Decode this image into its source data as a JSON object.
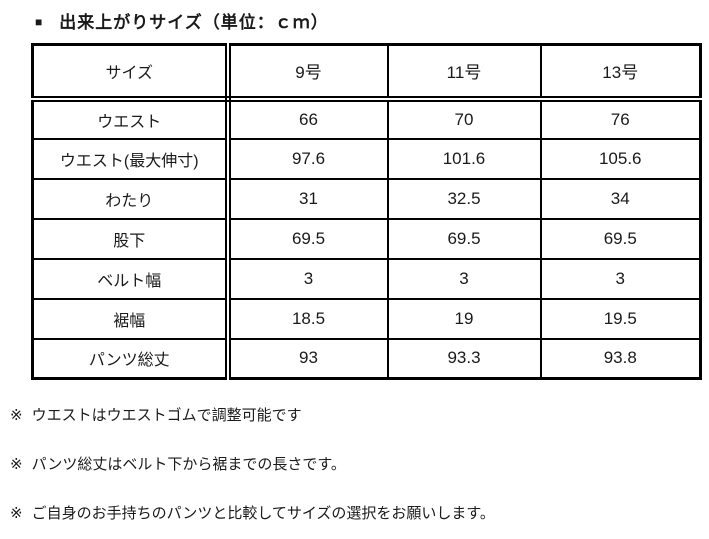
{
  "title": {
    "bullet": "■",
    "text": "出来上がりサイズ（単位：ｃｍ）"
  },
  "table": {
    "header": {
      "label": "サイズ",
      "columns": [
        "9号",
        "11号",
        "13号"
      ]
    },
    "rows": [
      {
        "label": "ウエスト",
        "values": [
          "66",
          "70",
          "76"
        ]
      },
      {
        "label": "ウエスト(最大伸寸)",
        "values": [
          "97.6",
          "101.6",
          "105.6"
        ]
      },
      {
        "label": "わたり",
        "values": [
          "31",
          "32.5",
          "34"
        ]
      },
      {
        "label": "股下",
        "values": [
          "69.5",
          "69.5",
          "69.5"
        ]
      },
      {
        "label": "ベルト幅",
        "values": [
          "3",
          "3",
          "3"
        ]
      },
      {
        "label": "裾幅",
        "values": [
          "18.5",
          "19",
          "19.5"
        ]
      },
      {
        "label": "パンツ総丈",
        "values": [
          "93",
          "93.3",
          "93.8"
        ]
      }
    ]
  },
  "notes": {
    "marker": "※",
    "items": [
      "ウエストはウエストゴムで調整可能です",
      "パンツ総丈はベルト下から裾までの長さです。",
      "ご自身のお手持ちのパンツと比較してサイズの選択をお願いします。"
    ]
  },
  "colors": {
    "text": "#1a1a1a",
    "border": "#000000",
    "background": "#ffffff"
  }
}
